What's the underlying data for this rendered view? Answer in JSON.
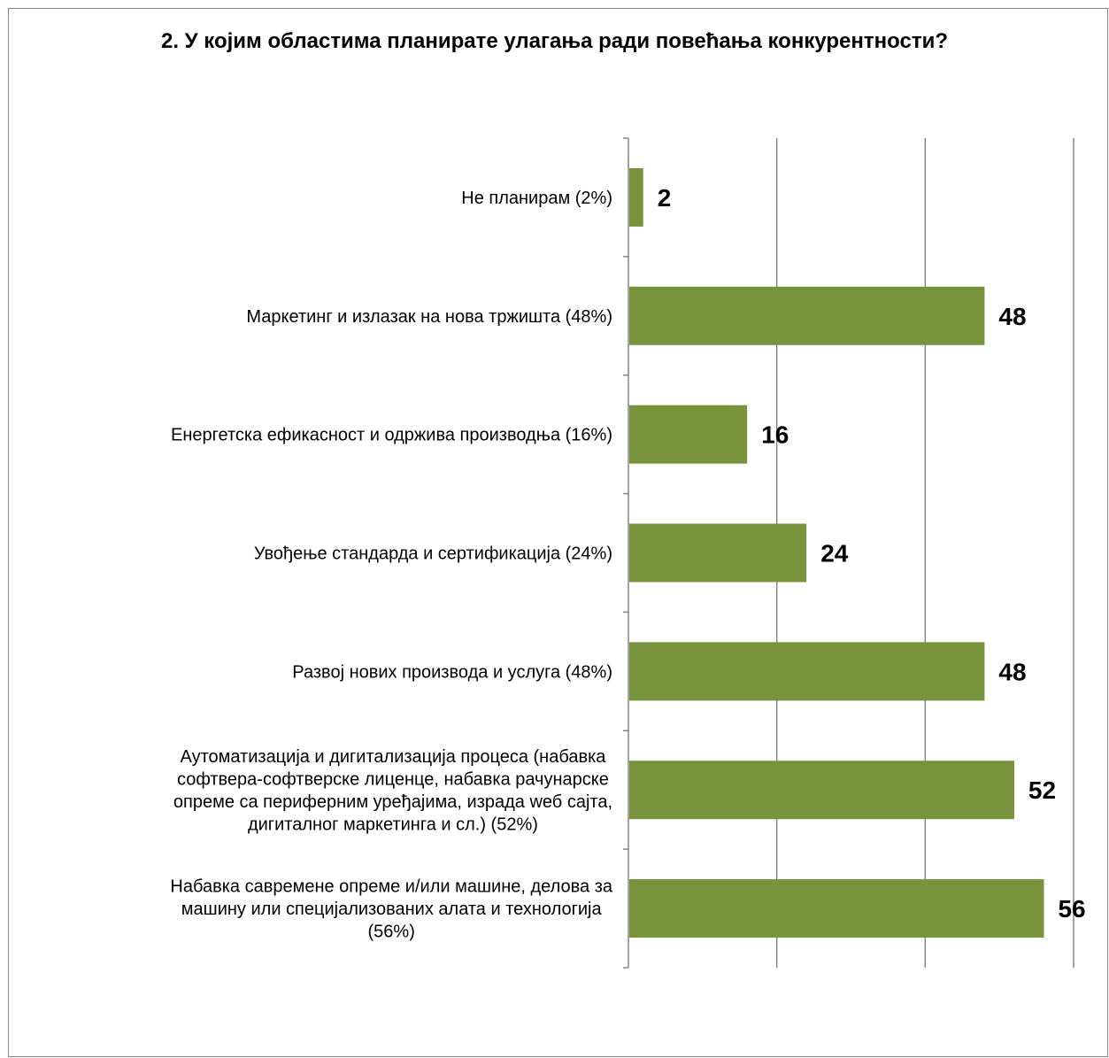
{
  "chart_data": {
    "type": "bar",
    "orientation": "horizontal",
    "title": "2. У којим областима планирате улагања ради повећања конкурентности?",
    "categories": [
      [
        "Не планирам (2%)"
      ],
      [
        "Маркетинг и излазак на нова тржишта (48%)"
      ],
      [
        "Енергетска ефикасност и одржива производња (16%)"
      ],
      [
        "Увођење стандарда и сертификација (24%)"
      ],
      [
        "Развој нових производа и услуга (48%)"
      ],
      [
        "Аутоматизација и дигитализација процеса (набавка",
        "софтвера-софтверске лиценце, набавка рачунарске",
        "опреме са периферним уређајима, израда wеб сајта,",
        "дигиталног маркетинга и сл.) (52%)"
      ],
      [
        "Набавка савремене опреме и/или машине, делова за",
        "машину или специјализованих алата  и технологија",
        "(56%)"
      ]
    ],
    "values": [
      2,
      48,
      16,
      24,
      48,
      52,
      56
    ],
    "value_labels": [
      "2",
      "48",
      "16",
      "24",
      "48",
      "52",
      "56"
    ],
    "xlim": [
      0,
      60
    ],
    "x_gridlines": [
      20,
      40,
      60
    ],
    "bar_color": "#77933c",
    "grid_color": "#868686",
    "grid": true,
    "legend": "none"
  }
}
